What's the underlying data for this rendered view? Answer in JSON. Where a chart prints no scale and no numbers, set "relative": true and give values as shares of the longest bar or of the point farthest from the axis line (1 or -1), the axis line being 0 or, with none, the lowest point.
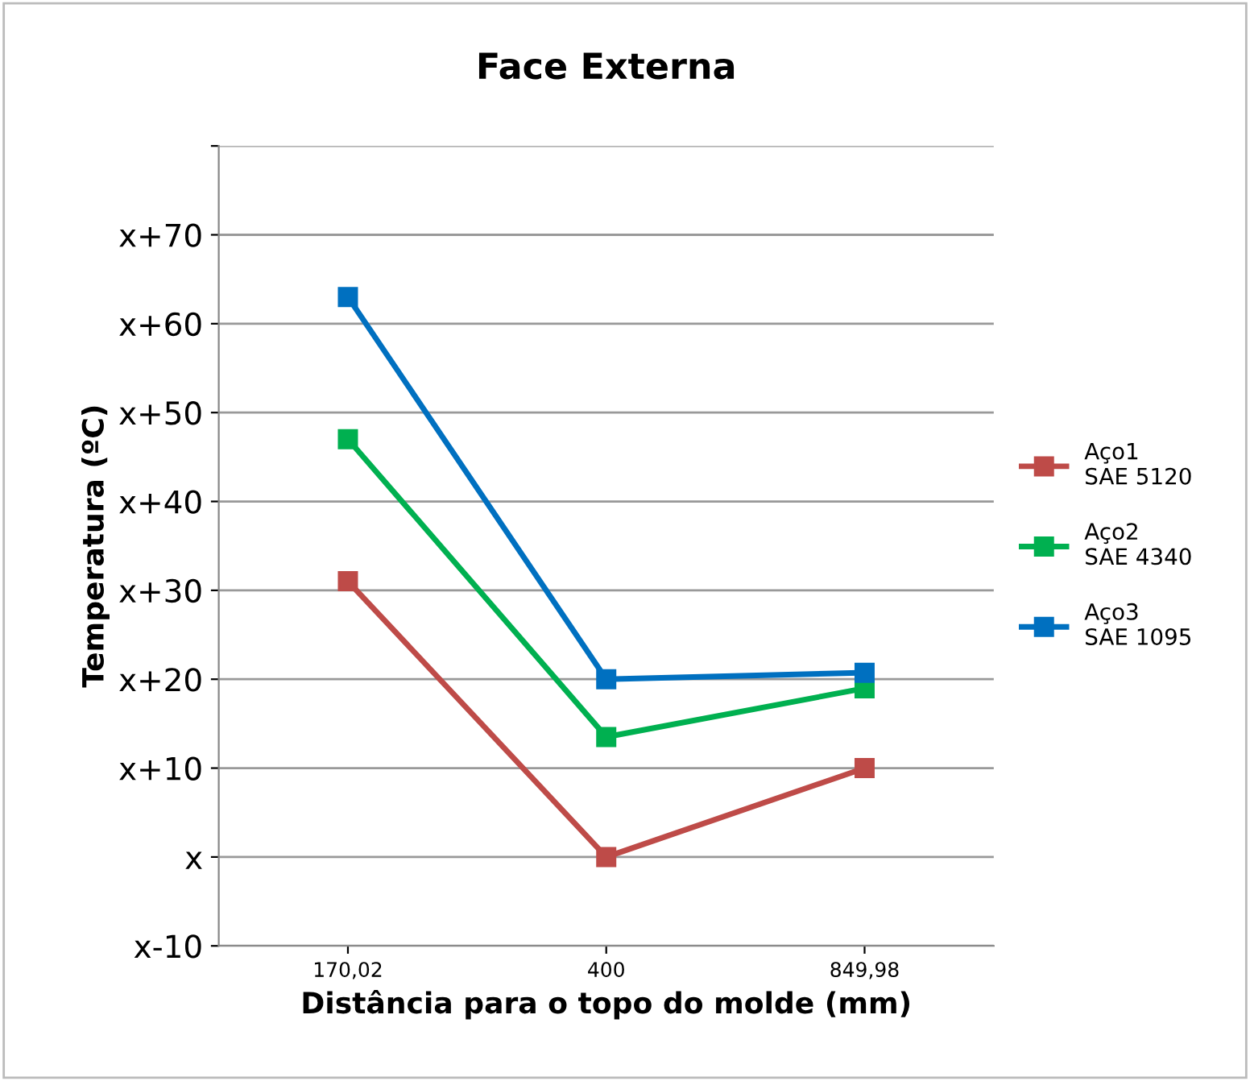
{
  "chart_data": {
    "type": "line",
    "title": "Face Externa",
    "xlabel": "Distância para o topo do molde (mm)",
    "ylabel": "Temperatura (ºC)",
    "categories": [
      "170,02",
      "400",
      "849,98"
    ],
    "relative": true,
    "series": [
      {
        "name": "Aço1\nSAE 5120",
        "color": "#be4b48",
        "values": [
          0.562,
          0.137,
          0.274
        ]
      },
      {
        "name": "Aço2\nSAE 4340",
        "color": "#00b050",
        "values": [
          0.781,
          0.322,
          0.397
        ]
      },
      {
        "name": "Aço3\nSAE 1095",
        "color": "#0070c0",
        "values": [
          1,
          0.411,
          0.421
        ]
      }
    ],
    "annotations": [
      "x-10",
      "x",
      "x+10",
      "x+20",
      "x+30",
      "x+40",
      "x+50",
      "x+60",
      "x+70"
    ],
    "grid": "y",
    "legend": "right",
    "marker": "square",
    "line_style": "solid"
  }
}
